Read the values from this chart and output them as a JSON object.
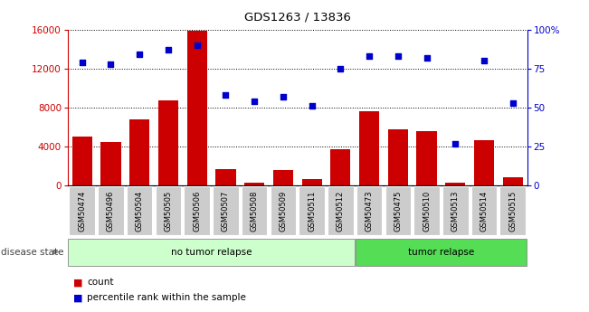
{
  "title": "GDS1263 / 13836",
  "samples": [
    "GSM50474",
    "GSM50496",
    "GSM50504",
    "GSM50505",
    "GSM50506",
    "GSM50507",
    "GSM50508",
    "GSM50509",
    "GSM50511",
    "GSM50512",
    "GSM50473",
    "GSM50475",
    "GSM50510",
    "GSM50513",
    "GSM50514",
    "GSM50515"
  ],
  "counts": [
    5000,
    4500,
    6800,
    8700,
    15900,
    1700,
    300,
    1600,
    700,
    3700,
    7600,
    5800,
    5600,
    300,
    4700,
    900
  ],
  "percentiles": [
    79,
    78,
    84,
    87,
    90,
    58,
    54,
    57,
    51,
    75,
    83,
    83,
    82,
    27,
    80,
    53
  ],
  "no_tumor_count": 10,
  "tumor_count": 6,
  "ylim_left": [
    0,
    16000
  ],
  "ylim_right": [
    0,
    100
  ],
  "yticks_left": [
    0,
    4000,
    8000,
    12000,
    16000
  ],
  "yticks_right": [
    0,
    25,
    50,
    75,
    100
  ],
  "bar_color": "#cc0000",
  "dot_color": "#0000cc",
  "no_tumor_color": "#ccffcc",
  "tumor_color": "#55dd55",
  "label_bg_color": "#cccccc",
  "legend_count_label": "count",
  "legend_pct_label": "percentile rank within the sample",
  "disease_state_label": "disease state",
  "no_tumor_label": "no tumor relapse",
  "tumor_label": "tumor relapse"
}
